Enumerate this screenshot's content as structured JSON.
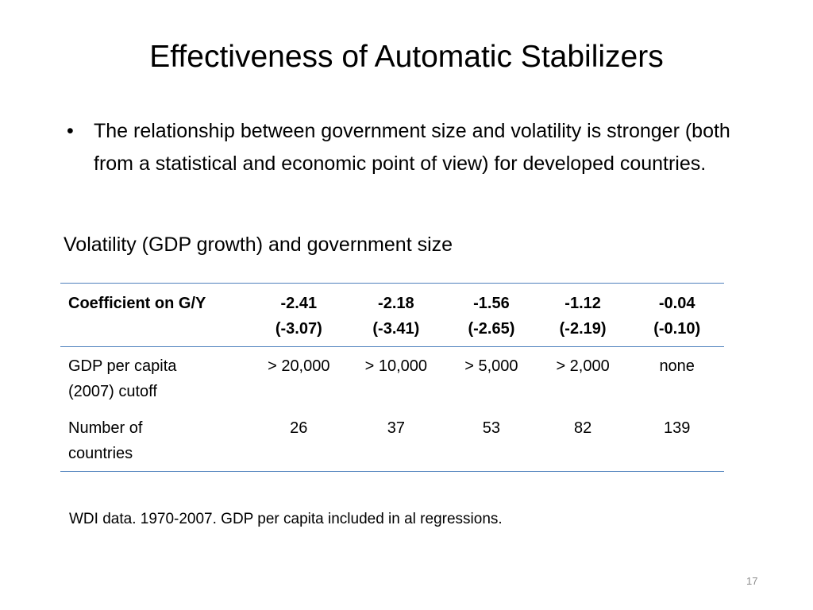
{
  "slide": {
    "title": "Effectiveness of Automatic Stabilizers",
    "bullet_marker": "•",
    "bullet_text": "The relationship between government size and volatility is stronger (both from a statistical and economic point of view) for developed countries.",
    "subheading": "Volatility (GDP growth) and government size",
    "footnote": "WDI data. 1970-2007. GDP per capita included in al regressions.",
    "page_number": "17"
  },
  "table": {
    "header": {
      "label": "Coefficient on G/Y",
      "columns": [
        {
          "coef": "-2.41",
          "tstat": "(-3.07)"
        },
        {
          "coef": "-2.18",
          "tstat": "(-3.41)"
        },
        {
          "coef": "-1.56",
          "tstat": "(-2.65)"
        },
        {
          "coef": "-1.12",
          "tstat": "(-2.19)"
        },
        {
          "coef": "-0.04",
          "tstat": "(-0.10)"
        }
      ]
    },
    "rows": [
      {
        "label_line1": "GDP per capita",
        "label_line2": "(2007) cutoff",
        "values": [
          "> 20,000",
          "> 10,000",
          "> 5,000",
          "> 2,000",
          "none"
        ]
      },
      {
        "label_line1": "Number of",
        "label_line2": "countries",
        "values": [
          "26",
          "37",
          "53",
          "82",
          "139"
        ]
      }
    ]
  },
  "colors": {
    "table_rule": "#4f81bd",
    "page_number": "#8c8c8c"
  }
}
